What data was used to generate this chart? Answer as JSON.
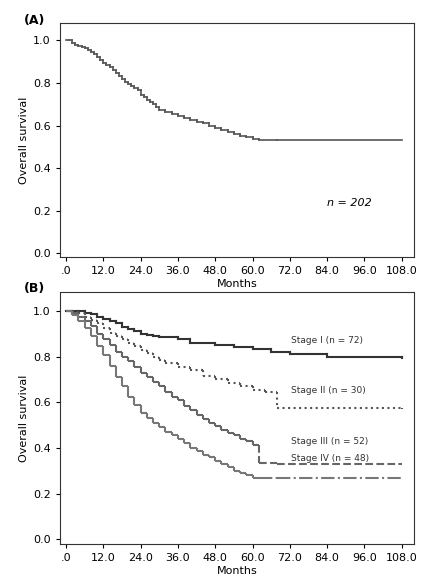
{
  "panel_A": {
    "label": "(A)",
    "annotation": "n = 202",
    "ylabel": "Overall survival",
    "xlabel": "Months",
    "xlim": [
      -2,
      112
    ],
    "ylim": [
      -0.02,
      1.08
    ],
    "xticks": [
      0,
      12,
      24,
      36,
      48,
      60,
      72,
      84,
      96,
      108
    ],
    "xtick_labels": [
      ".0",
      "12.0",
      "24.0",
      "36.0",
      "48.0",
      "60.0",
      "72.0",
      "84.0",
      "96.0",
      "108.0"
    ],
    "yticks": [
      0.0,
      0.2,
      0.4,
      0.6,
      0.8,
      1.0
    ],
    "curve": {
      "color": "#555555",
      "linestyle": "solid",
      "linewidth": 1.2,
      "times": [
        0,
        1,
        2,
        3,
        4,
        5,
        6,
        7,
        8,
        9,
        10,
        11,
        12,
        13,
        14,
        15,
        16,
        17,
        18,
        19,
        20,
        21,
        22,
        23,
        24,
        25,
        26,
        27,
        28,
        29,
        30,
        32,
        34,
        36,
        38,
        40,
        42,
        44,
        46,
        48,
        50,
        52,
        54,
        56,
        58,
        60,
        62,
        68,
        108
      ],
      "survival": [
        1.0,
        1.0,
        0.99,
        0.98,
        0.975,
        0.97,
        0.965,
        0.955,
        0.945,
        0.935,
        0.92,
        0.91,
        0.895,
        0.885,
        0.875,
        0.86,
        0.845,
        0.835,
        0.82,
        0.805,
        0.795,
        0.785,
        0.775,
        0.765,
        0.745,
        0.735,
        0.72,
        0.71,
        0.7,
        0.685,
        0.675,
        0.665,
        0.655,
        0.645,
        0.635,
        0.625,
        0.615,
        0.61,
        0.6,
        0.59,
        0.58,
        0.57,
        0.56,
        0.55,
        0.545,
        0.535,
        0.53,
        0.53,
        0.53
      ]
    }
  },
  "panel_B": {
    "label": "(B)",
    "ylabel": "Overall survival",
    "xlabel": "Months",
    "xlim": [
      -2,
      112
    ],
    "ylim": [
      -0.02,
      1.08
    ],
    "xticks": [
      0,
      12,
      24,
      36,
      48,
      60,
      72,
      84,
      96,
      108
    ],
    "xtick_labels": [
      ".0",
      "12.0",
      "24.0",
      "36.0",
      "48.0",
      "60.0",
      "72.0",
      "84.0",
      "96.0",
      "108.0"
    ],
    "yticks": [
      0.0,
      0.2,
      0.4,
      0.6,
      0.8,
      1.0
    ],
    "curves": [
      {
        "label": "Stage I (n = 72)",
        "color": "#333333",
        "linestyle": "solid",
        "linewidth": 1.5,
        "times": [
          0,
          2,
          4,
          6,
          8,
          10,
          12,
          14,
          16,
          18,
          20,
          22,
          24,
          26,
          28,
          30,
          36,
          40,
          48,
          54,
          60,
          66,
          72,
          84,
          108
        ],
        "survival": [
          1.0,
          1.0,
          1.0,
          0.99,
          0.985,
          0.975,
          0.965,
          0.955,
          0.945,
          0.93,
          0.92,
          0.91,
          0.9,
          0.895,
          0.89,
          0.885,
          0.875,
          0.86,
          0.85,
          0.84,
          0.835,
          0.82,
          0.81,
          0.8,
          0.795
        ]
      },
      {
        "label": "Stage II (n = 30)",
        "color": "#555555",
        "linestyle": "dotted",
        "linewidth": 1.5,
        "times": [
          0,
          2,
          4,
          6,
          8,
          10,
          12,
          14,
          16,
          18,
          20,
          22,
          24,
          26,
          28,
          30,
          32,
          36,
          40,
          44,
          48,
          52,
          56,
          60,
          64,
          68,
          108
        ],
        "survival": [
          1.0,
          1.0,
          0.99,
          0.975,
          0.96,
          0.945,
          0.925,
          0.905,
          0.89,
          0.875,
          0.86,
          0.845,
          0.83,
          0.815,
          0.8,
          0.785,
          0.77,
          0.755,
          0.74,
          0.715,
          0.7,
          0.685,
          0.67,
          0.655,
          0.645,
          0.575,
          0.57
        ]
      },
      {
        "label": "Stage III (n = 52)",
        "color": "#666666",
        "linestyle": "dashed",
        "linewidth": 1.5,
        "times": [
          0,
          2,
          4,
          6,
          8,
          10,
          12,
          14,
          16,
          18,
          20,
          22,
          24,
          26,
          28,
          30,
          32,
          34,
          36,
          38,
          40,
          42,
          44,
          46,
          48,
          50,
          52,
          54,
          56,
          58,
          60,
          62,
          68,
          108
        ],
        "survival": [
          1.0,
          0.99,
          0.975,
          0.955,
          0.935,
          0.9,
          0.875,
          0.85,
          0.82,
          0.8,
          0.78,
          0.755,
          0.73,
          0.71,
          0.69,
          0.67,
          0.645,
          0.625,
          0.61,
          0.585,
          0.565,
          0.545,
          0.525,
          0.51,
          0.495,
          0.48,
          0.465,
          0.455,
          0.44,
          0.43,
          0.415,
          0.335,
          0.33,
          0.33
        ]
      },
      {
        "label": "Stage IV (n = 48)",
        "color": "#777777",
        "linestyle": "dashdot",
        "linewidth": 1.5,
        "times": [
          0,
          2,
          4,
          6,
          8,
          10,
          12,
          14,
          16,
          18,
          20,
          22,
          24,
          26,
          28,
          30,
          32,
          34,
          36,
          38,
          40,
          42,
          44,
          46,
          48,
          50,
          52,
          54,
          56,
          58,
          60,
          62,
          68,
          108
        ],
        "survival": [
          1.0,
          0.98,
          0.955,
          0.925,
          0.89,
          0.845,
          0.805,
          0.76,
          0.71,
          0.67,
          0.625,
          0.59,
          0.555,
          0.53,
          0.51,
          0.49,
          0.47,
          0.455,
          0.44,
          0.42,
          0.4,
          0.385,
          0.37,
          0.36,
          0.345,
          0.33,
          0.315,
          0.3,
          0.29,
          0.28,
          0.27,
          0.27,
          0.27,
          0.27
        ]
      }
    ]
  },
  "bg_color": "#ffffff",
  "text_color": "#000000",
  "font_size": 8,
  "label_font_size": 9
}
